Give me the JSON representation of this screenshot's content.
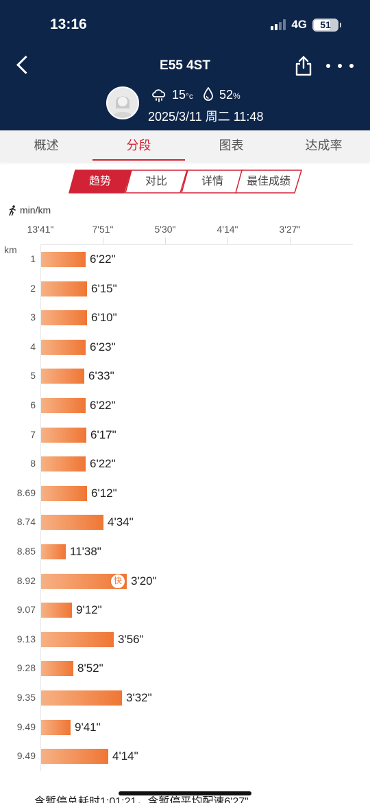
{
  "status_bar": {
    "time": "13:16",
    "network": "4G",
    "battery": "51"
  },
  "header": {
    "title": "E55 4ST",
    "temperature": "15",
    "temperature_unit": "°c",
    "humidity": "52",
    "humidity_unit": "%",
    "datetime": "2025/3/11 周二 11:48"
  },
  "tabs": [
    {
      "label": "概述",
      "active": false
    },
    {
      "label": "分段",
      "active": true
    },
    {
      "label": "图表",
      "active": false
    },
    {
      "label": "达成率",
      "active": false
    }
  ],
  "sub_tabs": [
    {
      "label": "趋势",
      "active": true
    },
    {
      "label": "对比",
      "active": false
    },
    {
      "label": "详情",
      "active": false
    },
    {
      "label": "最佳成绩",
      "active": false
    }
  ],
  "colors": {
    "header_bg": "#0d2549",
    "accent": "#d22336",
    "bar_start": "#f7b184",
    "bar_end": "#ef7634"
  },
  "chart_data": {
    "type": "bar",
    "orientation": "horizontal",
    "unit_label": "min/km",
    "y_axis_label": "km",
    "x_ticks": [
      "13'41\"",
      "7'51\"",
      "5'30\"",
      "4'14\"",
      "3'27\""
    ],
    "categories": [
      "1",
      "2",
      "3",
      "4",
      "5",
      "6",
      "7",
      "8",
      "8.69",
      "8.74",
      "8.85",
      "8.92",
      "9.07",
      "9.13",
      "9.28",
      "9.35",
      "9.49",
      "9.49"
    ],
    "pace_labels": [
      "6'22\"",
      "6'15\"",
      "6'10\"",
      "6'23\"",
      "6'33\"",
      "6'22\"",
      "6'17\"",
      "6'22\"",
      "6'12\"",
      "4'34\"",
      "11'38\"",
      "3'20\"",
      "9'12\"",
      "3'56\"",
      "8'52\"",
      "3'32\"",
      "9'41\"",
      "4'14\""
    ],
    "pace_seconds": [
      382,
      375,
      370,
      383,
      393,
      382,
      377,
      382,
      372,
      274,
      698,
      200,
      552,
      236,
      532,
      212,
      581,
      254
    ],
    "fastest_index": 11,
    "fastest_badge": "快"
  },
  "summary": "含暂停总耗时1:01:21，含暂停平均配速6'27\""
}
